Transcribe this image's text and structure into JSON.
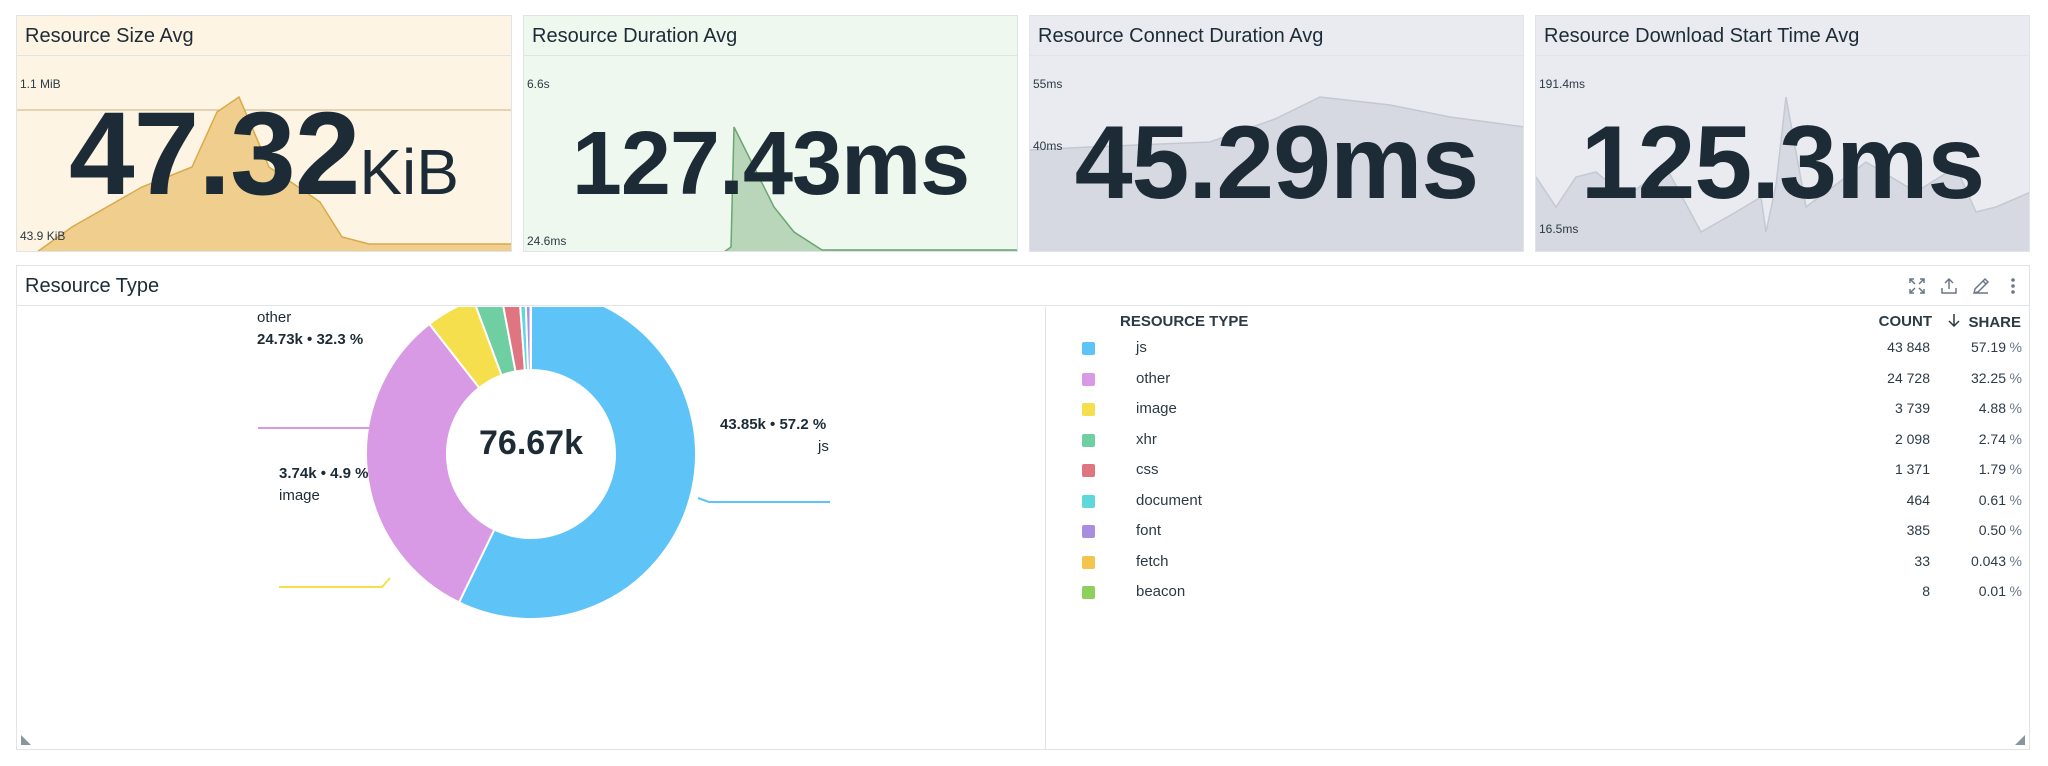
{
  "tiles": [
    {
      "title": "Resource Size Avg",
      "value": "47.32",
      "unit": "KiB",
      "max_label": "1.1 MiB",
      "min_label": "43.9 KiB",
      "bg": "#fdf4e3",
      "fill": "#f0cf8e",
      "stroke": "#d9a94a"
    },
    {
      "title": "Resource Duration Avg",
      "value": "127.43ms",
      "unit": "",
      "max_label": "6.6s",
      "min_label": "24.6ms",
      "bg": "#eef8ef",
      "fill": "#b9d6bb",
      "stroke": "#6aa66f"
    },
    {
      "title": "Resource Connect Duration Avg",
      "value": "45.29ms",
      "unit": "",
      "max_label": "55ms",
      "min_label": "40ms",
      "bg": "#e9ebf0",
      "fill": "#d6d9e1",
      "stroke": "#c3c8d2"
    },
    {
      "title": "Resource Download Start Time Avg",
      "value": "125.3ms",
      "unit": "",
      "max_label": "191.4ms",
      "min_label": "16.5ms",
      "bg": "#e9ebf0",
      "fill": "#d6d9e1",
      "stroke": "#c3c8d2"
    }
  ],
  "panel": {
    "title": "Resource Type",
    "total": "76.67k",
    "tools": [
      "expand-icon",
      "export-icon",
      "edit-icon",
      "more-icon"
    ],
    "columns": {
      "type": "RESOURCE TYPE",
      "count": "COUNT",
      "share": "SHARE"
    },
    "labels": {
      "js_value": "43.85k • 57.2 %",
      "js_name": "js",
      "other_value": "24.73k • 32.3 %",
      "other_name": "other",
      "image_value": "3.74k • 4.9 %",
      "image_name": "image"
    }
  },
  "chart_data": {
    "type": "pie",
    "categories": [
      "js",
      "other",
      "image",
      "xhr",
      "css",
      "document",
      "font",
      "fetch",
      "beacon"
    ],
    "values": [
      43848,
      24728,
      3739,
      2098,
      1371,
      464,
      385,
      33,
      8
    ],
    "count_labels": [
      "43 848",
      "24 728",
      "3 739",
      "2 098",
      "1 371",
      "464",
      "385",
      "33",
      "8"
    ],
    "shares": [
      "57.19",
      "32.25",
      "4.88",
      "2.74",
      "1.79",
      "0.61",
      "0.50",
      "0.043",
      "0.01"
    ],
    "pct_sign": "%",
    "colors": [
      "#5ec4f7",
      "#d89ae4",
      "#f5df4d",
      "#6fcfa3",
      "#e07582",
      "#5fd8db",
      "#a98ee0",
      "#f3c44e",
      "#8fcf5e"
    ],
    "total": "76.67k"
  }
}
